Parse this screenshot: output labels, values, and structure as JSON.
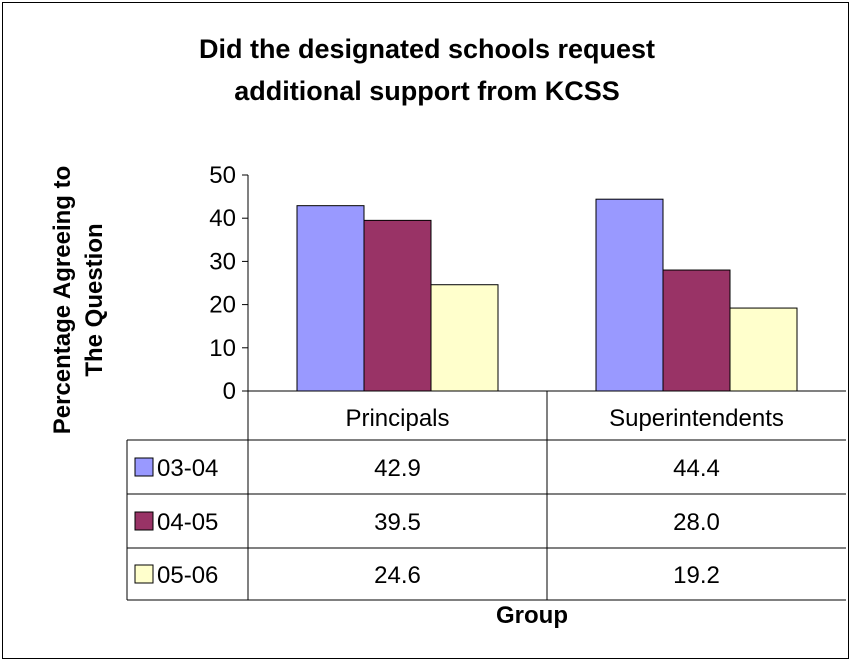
{
  "chart_data": {
    "type": "bar",
    "title_lines": [
      "Did the designated schools request",
      "additional support from KCSS"
    ],
    "xlabel": "Group",
    "ylabel_lines": [
      "Percentage Agreeing to",
      "The Question"
    ],
    "categories": [
      "Principals",
      "Superintendents"
    ],
    "ylim": [
      0,
      50
    ],
    "yticks": [
      "0",
      "10",
      "20",
      "30",
      "40",
      "50"
    ],
    "series": [
      {
        "name": "03-04",
        "color": "#9999ff",
        "values": [
          42.9,
          44.4
        ],
        "labels": [
          "42.9",
          "44.4"
        ]
      },
      {
        "name": "04-05",
        "color": "#993366",
        "values": [
          39.5,
          28.0
        ],
        "labels": [
          "39.5",
          "28.0"
        ]
      },
      {
        "name": "05-06",
        "color": "#ffffcc",
        "values": [
          24.6,
          19.2
        ],
        "labels": [
          "24.6",
          "19.2"
        ]
      }
    ],
    "legend": "data-table-left",
    "grid": false
  }
}
